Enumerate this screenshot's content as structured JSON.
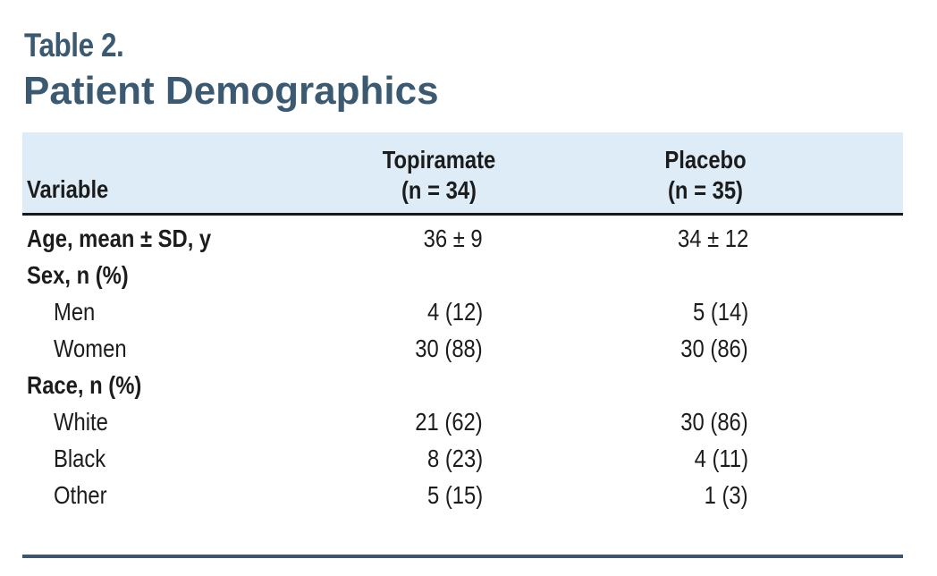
{
  "figure": {
    "table_number": "Table 2.",
    "title": "Patient Demographics"
  },
  "colors": {
    "accent_slate": "#3b5a72",
    "header_band": "#ddecf6",
    "header_rule": "#15191c",
    "bottom_rule": "#3d566c",
    "body_text": "#1c1c1c"
  },
  "table": {
    "columns": [
      {
        "label": "Variable",
        "sublabel": ""
      },
      {
        "label": "Topiramate",
        "sublabel": "(n = 34)"
      },
      {
        "label": "Placebo",
        "sublabel": "(n = 35)"
      }
    ],
    "rows": [
      {
        "label": "Age, mean ± SD, y",
        "topiramate": "36 ± 9",
        "placebo": "34 ± 12"
      },
      {
        "label": "Sex, n (%)",
        "topiramate": "",
        "placebo": ""
      },
      {
        "label": "Men",
        "topiramate": "4 (12)",
        "placebo": "5 (14)"
      },
      {
        "label": "Women",
        "topiramate": "30 (88)",
        "placebo": "30 (86)"
      },
      {
        "label": "Race, n (%)",
        "topiramate": "",
        "placebo": ""
      },
      {
        "label": "White",
        "topiramate": "21 (62)",
        "placebo": "30 (86)"
      },
      {
        "label": "Black",
        "topiramate": "8 (23)",
        "placebo": "4 (11)"
      },
      {
        "label": "Other",
        "topiramate": "5 (15)",
        "placebo": "1 (3)"
      }
    ]
  },
  "chart_data": {
    "type": "table",
    "title": "Table 2. Patient Demographics",
    "columns": [
      "Variable",
      "Topiramate (n = 34)",
      "Placebo (n = 35)"
    ],
    "rows": [
      [
        "Age, mean ± SD, y",
        "36 ± 9",
        "34 ± 12"
      ],
      [
        "Sex, n (%)",
        "",
        ""
      ],
      [
        "Men",
        "4 (12)",
        "5 (14)"
      ],
      [
        "Women",
        "30 (88)",
        "30 (86)"
      ],
      [
        "Race, n (%)",
        "",
        ""
      ],
      [
        "White",
        "21 (62)",
        "30 (86)"
      ],
      [
        "Black",
        "8 (23)",
        "4 (11)"
      ],
      [
        "Other",
        "5 (15)",
        "1 (3)"
      ]
    ],
    "groups": [
      {
        "section": "Sex, n (%)",
        "items": [
          "Men",
          "Women"
        ]
      },
      {
        "section": "Race, n (%)",
        "items": [
          "White",
          "Black",
          "Other"
        ]
      }
    ]
  }
}
